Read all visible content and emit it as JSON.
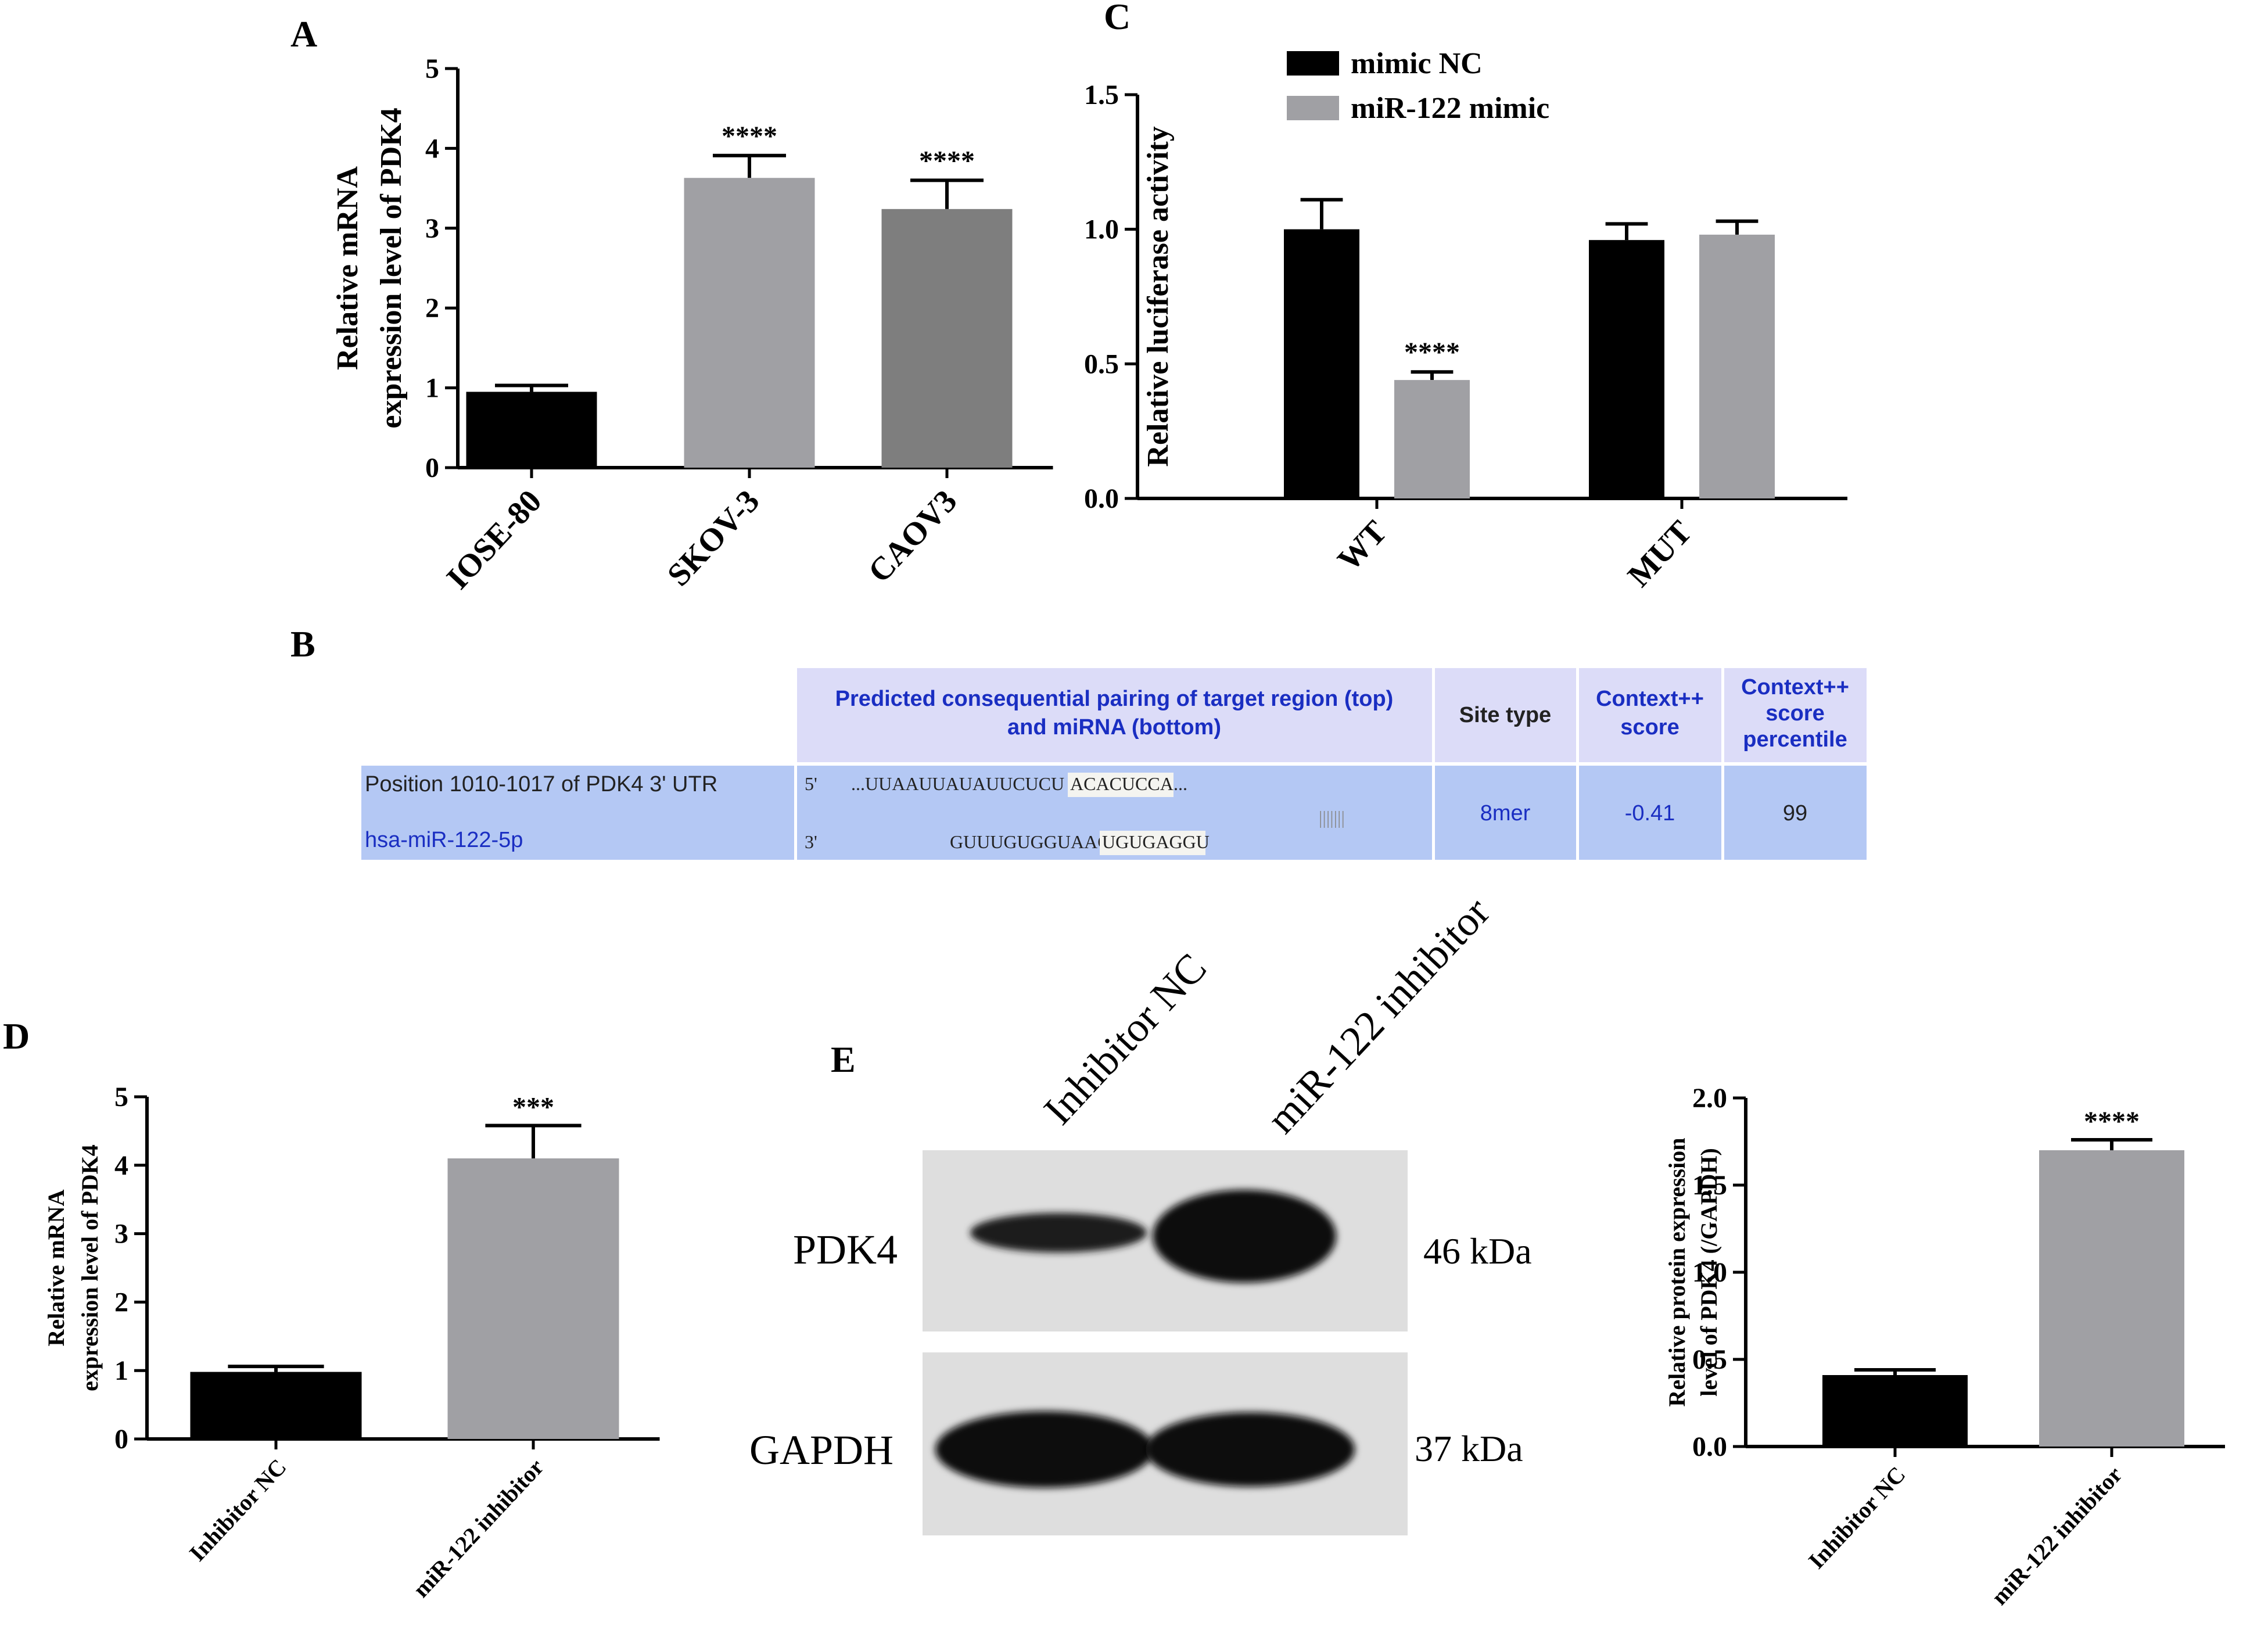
{
  "colors": {
    "black_bar": "#000000",
    "light_gray_bar": "#a0a0a4",
    "dark_gray_bar": "#7e7e7e",
    "table_header_bg": "#dcdcf8",
    "table_row_bg": "#b4c8f4",
    "table_blue_text": "#1a2ec2"
  },
  "panels": {
    "A": "A",
    "B": "B",
    "C": "C",
    "D": "D",
    "E": "E"
  },
  "table": {
    "header_pairing_line1": "Predicted consequential pairing of target region (top)",
    "header_pairing_line2": "and miRNA (bottom)",
    "header_site_type": "Site type",
    "header_context_line1": "Context++",
    "header_context_line2": "score",
    "header_percentile_line1": "Context++",
    "header_percentile_line2": "score",
    "header_percentile_line3": "percentile",
    "row_label_top": "Position 1010-1017 of PDK4 3' UTR",
    "row_label_bottom": "hsa-miR-122-5p",
    "seq_top_prefix": "5'",
    "seq_top_plain": "...UUAAUUAUAUUCUCU",
    "seq_top_highlight": "ACACUCCA",
    "seq_top_suffix": "...",
    "seq_pairs": "|||||||",
    "seq_bottom_prefix": "3'",
    "seq_bottom_plain": "GUUUGUGGUAACAG",
    "seq_bottom_highlight": "UGUGAGGU",
    "site_type": "8mer",
    "context_score": "-0.41",
    "percentile": "99"
  },
  "western_blot": {
    "lane1": "Inhibitor NC",
    "lane2": "miR-122 inhibitor",
    "band1_label": "PDK4",
    "band1_kda": "46 kDa",
    "band2_label": "GAPDH",
    "band2_kda": "37 kDa"
  },
  "chart_data": [
    {
      "id": "A",
      "type": "bar",
      "categories": [
        "IOSE-80",
        "SKOV-3",
        "CAOV3"
      ],
      "values": [
        0.95,
        3.63,
        3.24
      ],
      "errors": [
        0.08,
        0.28,
        0.36
      ],
      "significance": [
        "",
        "****",
        "****"
      ],
      "colors": [
        "#000000",
        "#a0a0a4",
        "#7e7e7e"
      ],
      "ylabel_line1": "Relative mRNA",
      "ylabel_line2": "expression level of PDK4",
      "ylim": [
        0,
        5
      ],
      "yticks": [
        "0",
        "1",
        "2",
        "3",
        "4",
        "5"
      ]
    },
    {
      "id": "C",
      "type": "bar",
      "categories": [
        "WT",
        "MUT"
      ],
      "series": [
        {
          "name": "mimic NC",
          "values": [
            1.0,
            0.96
          ],
          "errors": [
            0.11,
            0.06
          ],
          "color": "#000000"
        },
        {
          "name": "miR-122 mimic",
          "values": [
            0.44,
            0.98
          ],
          "errors": [
            0.03,
            0.05
          ],
          "color": "#a0a0a4"
        }
      ],
      "significance": [
        [
          "",
          "****"
        ],
        [
          "",
          ""
        ]
      ],
      "ylabel": "Relative luciferase activity",
      "ylim": [
        0,
        1.5
      ],
      "yticks": [
        "0.0",
        "0.5",
        "1.0",
        "1.5"
      ],
      "legend_position": "top"
    },
    {
      "id": "D",
      "type": "bar",
      "categories": [
        "Inhibitor NC",
        "miR-122 inhibitor"
      ],
      "values": [
        0.98,
        4.1
      ],
      "errors": [
        0.08,
        0.48
      ],
      "significance": [
        "",
        "***"
      ],
      "colors": [
        "#000000",
        "#a0a0a4"
      ],
      "ylabel_line1": "Relative mRNA",
      "ylabel_line2": "expression level of PDK4",
      "ylim": [
        0,
        5
      ],
      "yticks": [
        "0",
        "1",
        "2",
        "3",
        "4",
        "5"
      ]
    },
    {
      "id": "E",
      "type": "bar",
      "categories": [
        "Inhibitor NC",
        "miR-122 inhibitor"
      ],
      "values": [
        0.41,
        1.7
      ],
      "errors": [
        0.03,
        0.06
      ],
      "significance": [
        "",
        "****"
      ],
      "colors": [
        "#000000",
        "#a0a0a4"
      ],
      "ylabel_line1": "Relative protein expression",
      "ylabel_line2": "level of PDK4 (/GAPDH)",
      "ylim": [
        0,
        2.0
      ],
      "yticks": [
        "0.0",
        "0.5",
        "1.0",
        "1.5",
        "2.0"
      ]
    }
  ]
}
